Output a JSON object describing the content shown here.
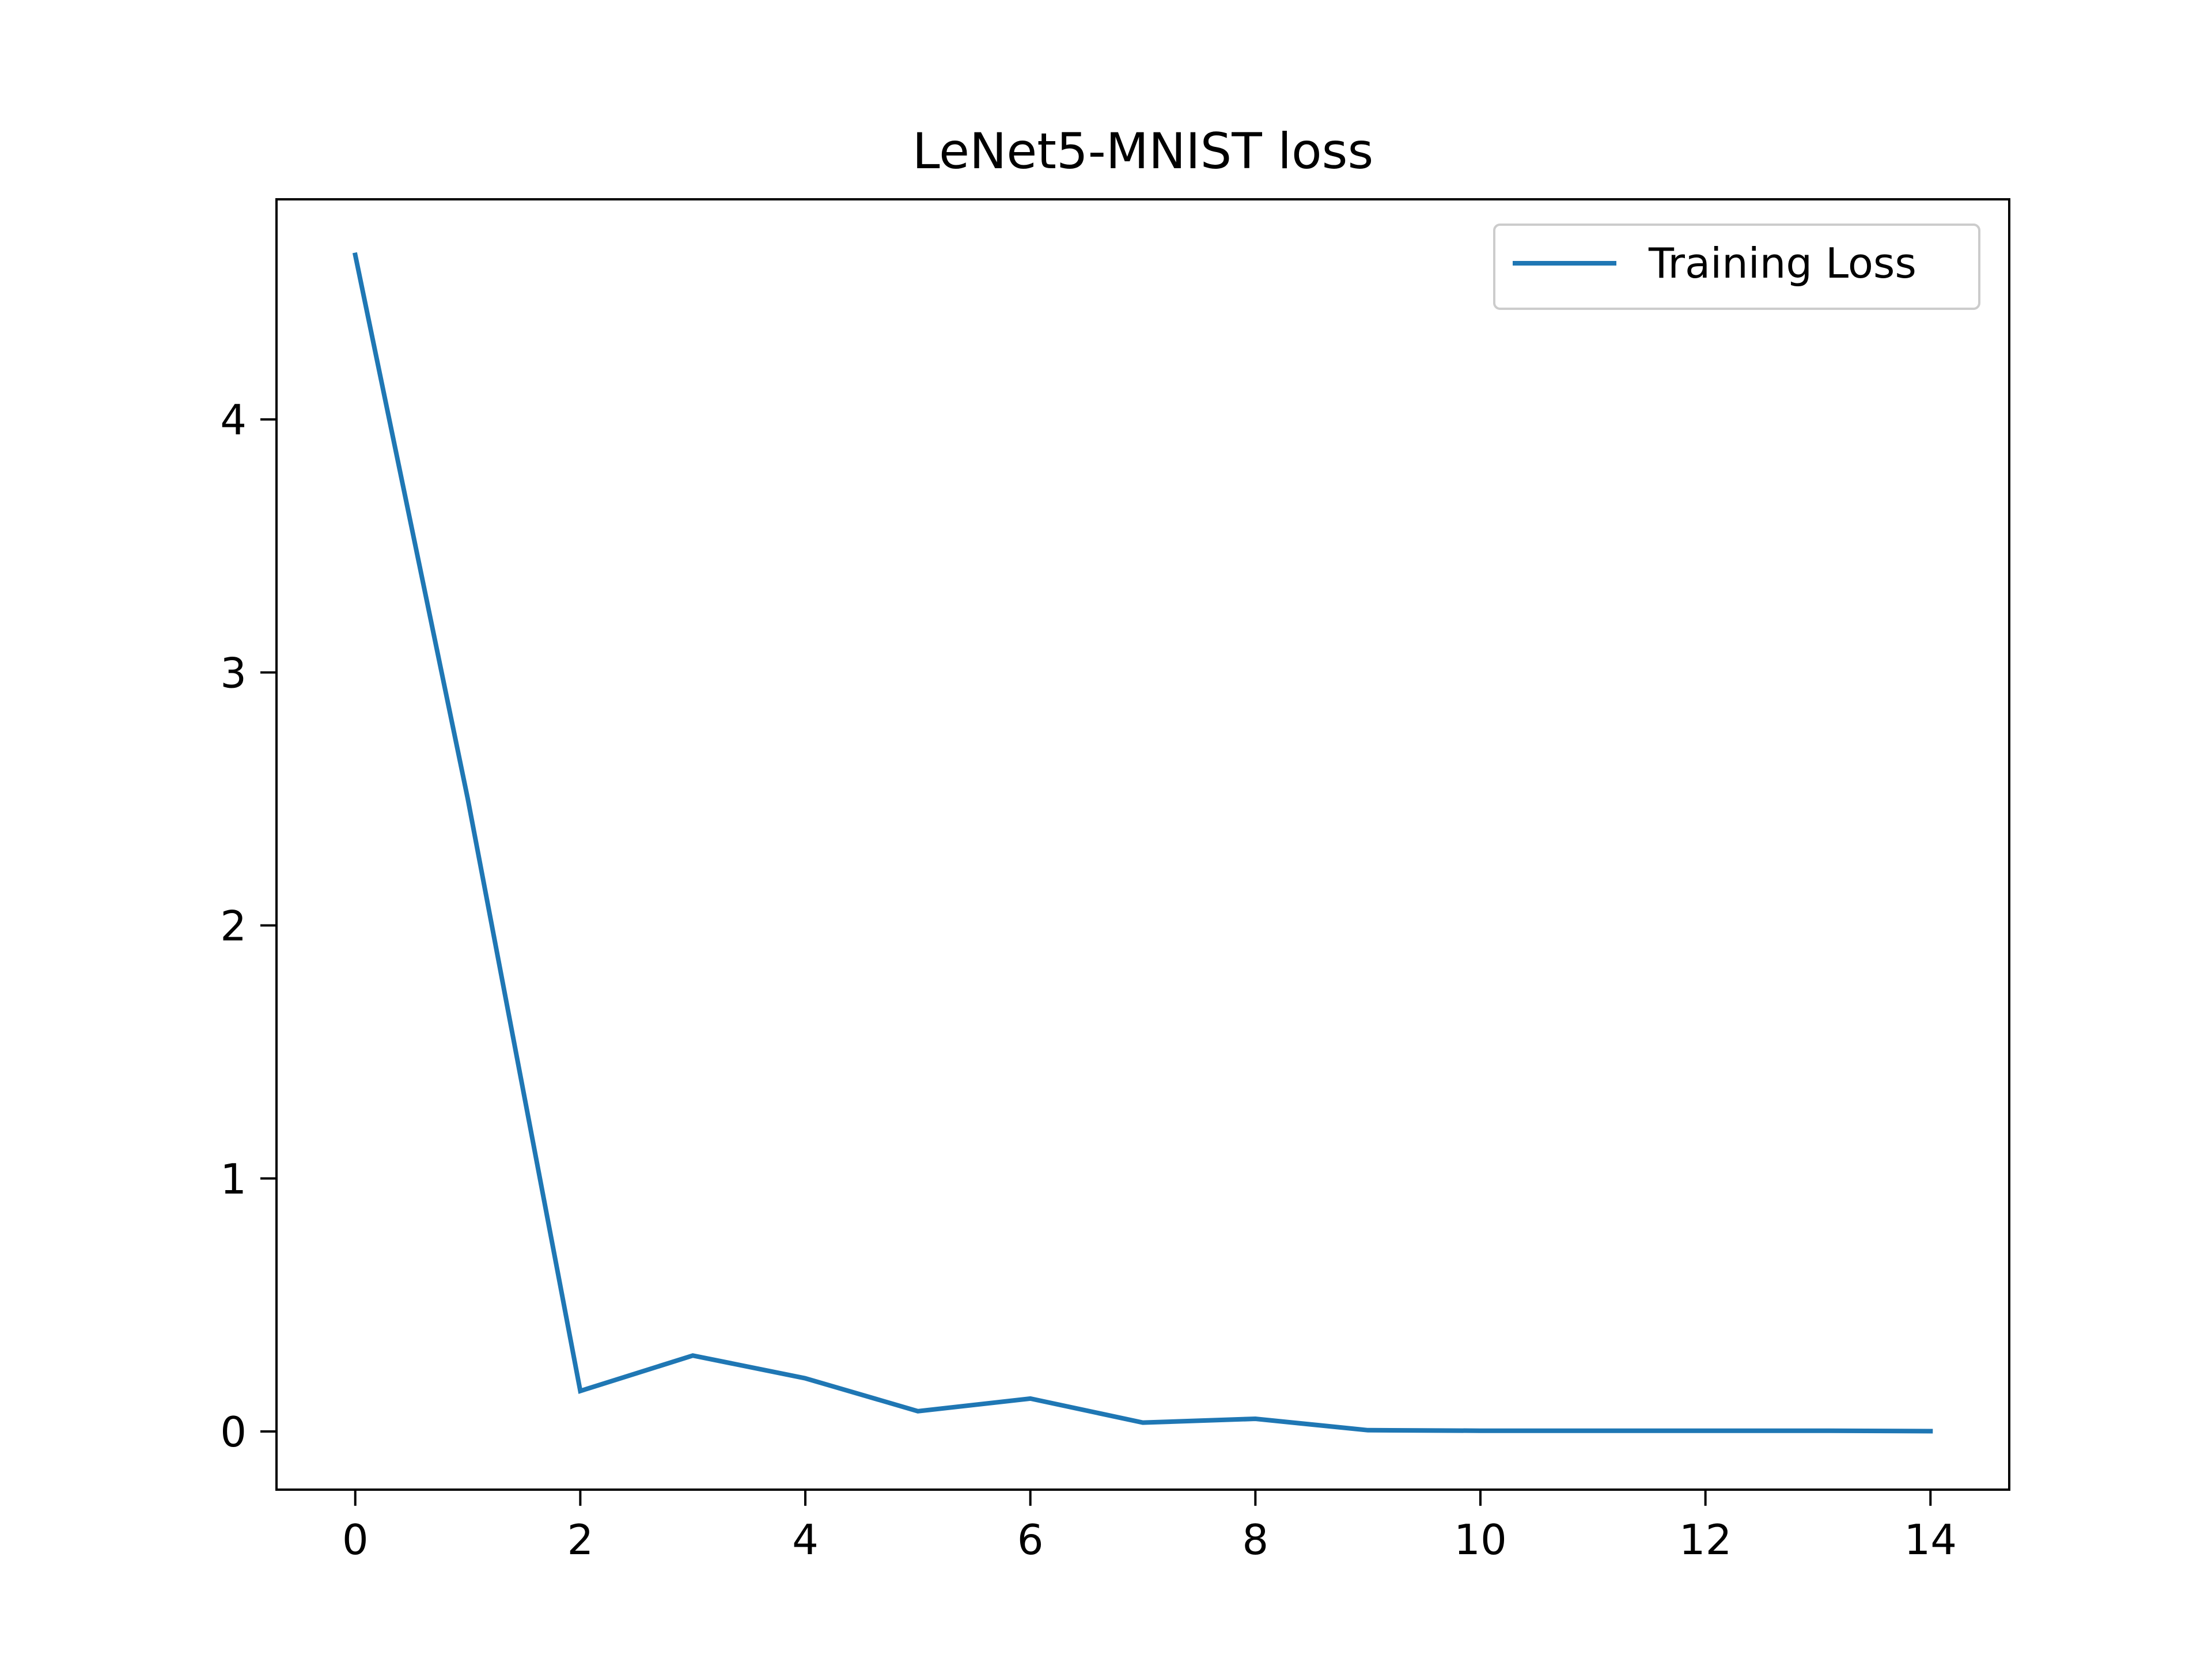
{
  "chart_data": {
    "type": "line",
    "title": "LeNet5-MNIST loss",
    "xlabel": "",
    "ylabel": "",
    "xlim": [
      -0.7,
      14.7
    ],
    "ylim": [
      -0.23,
      4.87
    ],
    "xticks": [
      0,
      2,
      4,
      6,
      8,
      10,
      12,
      14
    ],
    "yticks": [
      0,
      1,
      2,
      3,
      4
    ],
    "grid": false,
    "legend": {
      "placement": "top-right"
    },
    "series": [
      {
        "name": "Training Loss",
        "color": "#1f77b4",
        "x": [
          0,
          1,
          2,
          3,
          4,
          5,
          6,
          7,
          8,
          9,
          10,
          11,
          12,
          13,
          14
        ],
        "y": [
          4.65,
          2.5,
          0.16,
          0.3,
          0.21,
          0.08,
          0.13,
          0.035,
          0.05,
          0.005,
          0.003,
          0.003,
          0.003,
          0.003,
          0.001
        ]
      }
    ]
  }
}
